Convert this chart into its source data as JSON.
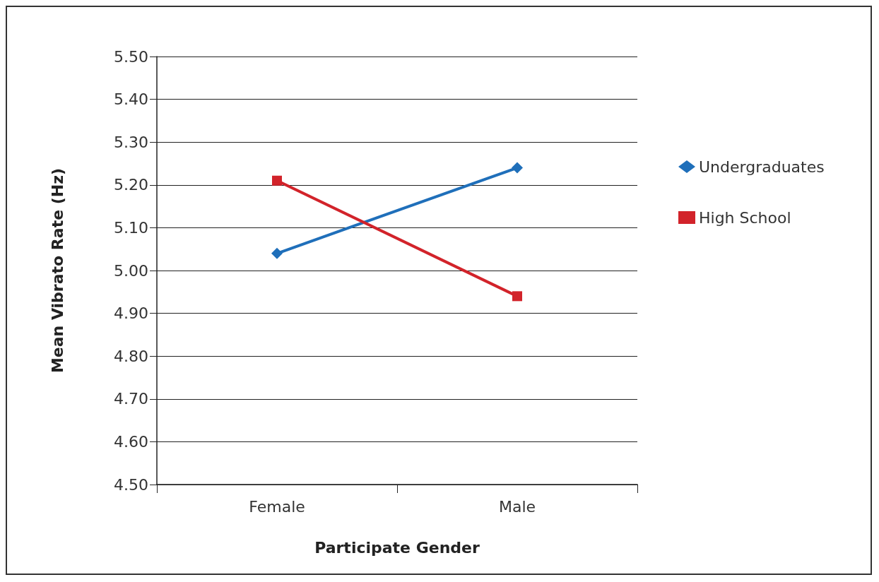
{
  "chart_data": {
    "type": "line",
    "xlabel": "Participate Gender",
    "ylabel": "Mean Vibrato Rate (Hz)",
    "categories": [
      "Female",
      "Male"
    ],
    "series": [
      {
        "name": "Undergraduates",
        "color": "#1f6fba",
        "values": [
          5.04,
          5.24
        ],
        "marker": "diamond"
      },
      {
        "name": "High School",
        "color": "#d2232a",
        "values": [
          5.21,
          4.94
        ],
        "marker": "square"
      }
    ],
    "ylim": [
      4.5,
      5.5
    ],
    "yticks": [
      {
        "value": 4.5,
        "label": "4.50"
      },
      {
        "value": 4.6,
        "label": "4.60"
      },
      {
        "value": 4.7,
        "label": "4.70"
      },
      {
        "value": 4.8,
        "label": "4.80"
      },
      {
        "value": 4.9,
        "label": "4.90"
      },
      {
        "value": 5.0,
        "label": "5.00"
      },
      {
        "value": 5.1,
        "label": "5.10"
      },
      {
        "value": 5.2,
        "label": "5.20"
      },
      {
        "value": 5.3,
        "label": "5.30"
      },
      {
        "value": 5.4,
        "label": "5.40"
      },
      {
        "value": 5.5,
        "label": "5.50"
      }
    ],
    "grid": "y",
    "legend": "right",
    "line_style": "solid"
  }
}
